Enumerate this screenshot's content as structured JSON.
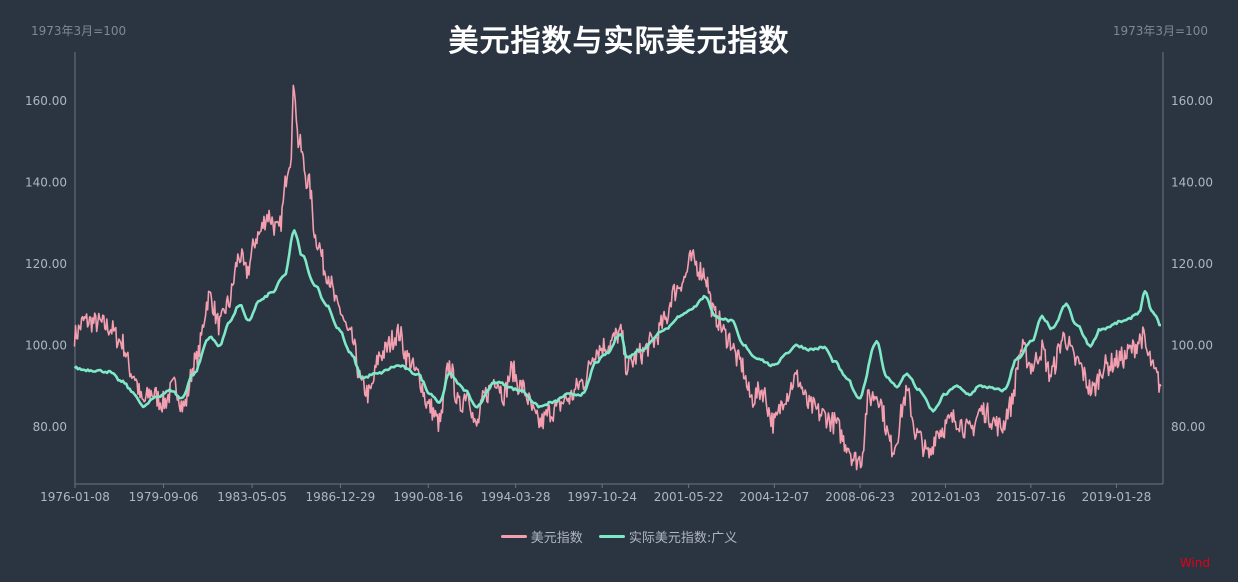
{
  "chart_data": {
    "type": "line",
    "title": "美元指数与实际美元指数",
    "y_unit_left": "1973年3月=100",
    "y_unit_right": "1973年3月=100",
    "x_tick_labels": [
      "1976-01-08",
      "1979-09-06",
      "1983-05-05",
      "1986-12-29",
      "1990-08-16",
      "1994-03-28",
      "1997-10-24",
      "2001-05-22",
      "2004-12-07",
      "2008-06-23",
      "2012-01-03",
      "2015-07-16",
      "2019-01-28"
    ],
    "x_range": [
      "1976-01-08",
      "2020-12-31"
    ],
    "y_tick_labels": [
      "80.00",
      "100.00",
      "120.00",
      "140.00",
      "160.00"
    ],
    "y_ticks": [
      80,
      100,
      120,
      140,
      160
    ],
    "ylim": [
      66,
      172
    ],
    "grid": false,
    "legend_position": "bottom",
    "source_label": "Wind",
    "series": [
      {
        "name": "美元指数",
        "color": "#f39fb0",
        "points": [
          [
            "1976-01",
            102.5
          ],
          [
            "1976-06",
            106.0
          ],
          [
            "1977-01",
            105.5
          ],
          [
            "1977-06",
            104.5
          ],
          [
            "1977-12",
            101.0
          ],
          [
            "1978-06",
            93.0
          ],
          [
            "1978-11",
            86.0
          ],
          [
            "1979-03",
            88.5
          ],
          [
            "1979-09",
            86.0
          ],
          [
            "1980-03",
            90.0
          ],
          [
            "1980-07",
            85.0
          ],
          [
            "1981-01",
            96.0
          ],
          [
            "1981-08",
            112.0
          ],
          [
            "1982-01",
            105.0
          ],
          [
            "1982-05",
            110.0
          ],
          [
            "1982-11",
            122.0
          ],
          [
            "1983-02",
            118.0
          ],
          [
            "1983-08",
            127.0
          ],
          [
            "1984-01",
            132.0
          ],
          [
            "1984-06",
            128.0
          ],
          [
            "1984-12",
            146.0
          ],
          [
            "1985-02",
            164.0
          ],
          [
            "1985-04",
            150.0
          ],
          [
            "1985-09",
            140.0
          ],
          [
            "1986-01",
            126.0
          ],
          [
            "1986-06",
            118.0
          ],
          [
            "1986-12",
            109.0
          ],
          [
            "1987-06",
            102.0
          ],
          [
            "1987-12",
            90.0
          ],
          [
            "1988-03",
            88.0
          ],
          [
            "1988-09",
            98.0
          ],
          [
            "1989-06",
            103.0
          ],
          [
            "1989-10",
            97.0
          ],
          [
            "1990-03",
            93.0
          ],
          [
            "1990-09",
            85.0
          ],
          [
            "1991-02",
            81.0
          ],
          [
            "1991-07",
            95.0
          ],
          [
            "1991-12",
            85.0
          ],
          [
            "1992-04",
            89.0
          ],
          [
            "1992-08",
            80.0
          ],
          [
            "1993-01",
            88.0
          ],
          [
            "1993-06",
            92.0
          ],
          [
            "1993-10",
            88.0
          ],
          [
            "1994-02",
            94.0
          ],
          [
            "1994-06",
            90.0
          ],
          [
            "1995-04",
            81.0
          ],
          [
            "1995-10",
            84.0
          ],
          [
            "1996-06",
            87.0
          ],
          [
            "1997-01",
            91.0
          ],
          [
            "1997-08",
            99.0
          ],
          [
            "1998-01",
            100.0
          ],
          [
            "1998-08",
            103.0
          ],
          [
            "1998-11",
            95.0
          ],
          [
            "1999-06",
            98.0
          ],
          [
            "1999-12",
            101.0
          ],
          [
            "2000-06",
            106.0
          ],
          [
            "2000-10",
            113.0
          ],
          [
            "2001-03",
            116.0
          ],
          [
            "2001-07",
            121.0
          ],
          [
            "2002-01",
            118.0
          ],
          [
            "2002-07",
            107.0
          ],
          [
            "2003-01",
            102.0
          ],
          [
            "2003-07",
            96.0
          ],
          [
            "2004-01",
            87.0
          ],
          [
            "2004-06",
            89.0
          ],
          [
            "2004-12",
            81.0
          ],
          [
            "2005-06",
            88.0
          ],
          [
            "2005-11",
            92.0
          ],
          [
            "2006-06",
            85.0
          ],
          [
            "2006-12",
            83.0
          ],
          [
            "2007-06",
            81.0
          ],
          [
            "2007-12",
            76.0
          ],
          [
            "2008-04",
            72.0
          ],
          [
            "2008-07",
            72.0
          ],
          [
            "2008-11",
            87.0
          ],
          [
            "2009-03",
            88.0
          ],
          [
            "2009-11",
            75.0
          ],
          [
            "2010-06",
            88.0
          ],
          [
            "2010-11",
            78.0
          ],
          [
            "2011-05",
            73.0
          ],
          [
            "2011-09",
            79.0
          ],
          [
            "2012-06",
            82.0
          ],
          [
            "2013-01",
            79.0
          ],
          [
            "2013-07",
            84.0
          ],
          [
            "2014-05",
            80.0
          ],
          [
            "2014-09",
            85.0
          ],
          [
            "2015-03",
            99.0
          ],
          [
            "2015-08",
            95.0
          ],
          [
            "2016-01",
            99.0
          ],
          [
            "2016-05",
            93.0
          ],
          [
            "2016-12",
            102.0
          ],
          [
            "2017-06",
            96.0
          ],
          [
            "2018-02",
            89.0
          ],
          [
            "2018-08",
            95.0
          ],
          [
            "2019-06",
            97.0
          ],
          [
            "2019-09",
            99.0
          ],
          [
            "2020-03",
            102.0
          ],
          [
            "2020-06",
            97.0
          ],
          [
            "2020-09",
            93.0
          ],
          [
            "2020-12",
            90.0
          ]
        ]
      },
      {
        "name": "实际美元指数:广义",
        "color": "#7ee8c8",
        "points": [
          [
            "1976-01",
            94.5
          ],
          [
            "1976-06",
            94.0
          ],
          [
            "1977-01",
            93.8
          ],
          [
            "1977-06",
            93.5
          ],
          [
            "1978-01",
            91.0
          ],
          [
            "1978-06",
            88.5
          ],
          [
            "1978-11",
            85.0
          ],
          [
            "1979-06",
            87.5
          ],
          [
            "1980-01",
            89.0
          ],
          [
            "1980-06",
            87.0
          ],
          [
            "1980-12",
            93.0
          ],
          [
            "1981-08",
            102.0
          ],
          [
            "1982-01",
            100.0
          ],
          [
            "1982-06",
            106.0
          ],
          [
            "1982-11",
            110.0
          ],
          [
            "1983-03",
            106.0
          ],
          [
            "1983-09",
            111.0
          ],
          [
            "1984-03",
            113.0
          ],
          [
            "1984-09",
            117.0
          ],
          [
            "1985-02",
            128.0
          ],
          [
            "1985-06",
            122.0
          ],
          [
            "1985-12",
            115.0
          ],
          [
            "1986-06",
            110.0
          ],
          [
            "1986-12",
            104.0
          ],
          [
            "1987-06",
            98.0
          ],
          [
            "1987-12",
            92.0
          ],
          [
            "1988-06",
            93.0
          ],
          [
            "1989-06",
            95.0
          ],
          [
            "1990-03",
            93.0
          ],
          [
            "1990-10",
            88.0
          ],
          [
            "1991-02",
            86.0
          ],
          [
            "1991-07",
            93.0
          ],
          [
            "1992-03",
            89.0
          ],
          [
            "1992-08",
            85.0
          ],
          [
            "1993-06",
            91.0
          ],
          [
            "1994-06",
            89.0
          ],
          [
            "1995-04",
            85.0
          ],
          [
            "1995-10",
            86.0
          ],
          [
            "1996-06",
            88.0
          ],
          [
            "1997-01",
            88.0
          ],
          [
            "1997-08",
            96.0
          ],
          [
            "1998-01",
            98.0
          ],
          [
            "1998-08",
            103.0
          ],
          [
            "1998-11",
            97.0
          ],
          [
            "1999-06",
            99.0
          ],
          [
            "2000-06",
            104.0
          ],
          [
            "2001-01",
            107.0
          ],
          [
            "2001-07",
            109.0
          ],
          [
            "2002-02",
            112.0
          ],
          [
            "2002-07",
            107.0
          ],
          [
            "2003-03",
            106.0
          ],
          [
            "2003-09",
            100.0
          ],
          [
            "2004-03",
            97.0
          ],
          [
            "2004-12",
            95.0
          ],
          [
            "2005-06",
            98.0
          ],
          [
            "2005-11",
            100.0
          ],
          [
            "2006-06",
            99.0
          ],
          [
            "2007-01",
            99.5
          ],
          [
            "2007-06",
            96.0
          ],
          [
            "2007-12",
            92.0
          ],
          [
            "2008-06",
            87.0
          ],
          [
            "2009-03",
            101.0
          ],
          [
            "2009-08",
            92.0
          ],
          [
            "2010-01",
            90.0
          ],
          [
            "2010-06",
            93.0
          ],
          [
            "2010-12",
            89.0
          ],
          [
            "2011-07",
            84.0
          ],
          [
            "2012-01",
            88.0
          ],
          [
            "2012-06",
            90.0
          ],
          [
            "2013-01",
            88.0
          ],
          [
            "2013-06",
            90.0
          ],
          [
            "2014-06",
            89.0
          ],
          [
            "2015-01",
            97.0
          ],
          [
            "2015-08",
            101.0
          ],
          [
            "2016-01",
            107.0
          ],
          [
            "2016-06",
            104.0
          ],
          [
            "2017-01",
            110.0
          ],
          [
            "2017-06",
            105.0
          ],
          [
            "2018-01",
            100.0
          ],
          [
            "2018-06",
            104.0
          ],
          [
            "2019-06",
            106.0
          ],
          [
            "2020-01",
            108.0
          ],
          [
            "2020-04",
            113.0
          ],
          [
            "2020-08",
            108.0
          ],
          [
            "2020-12",
            105.0
          ]
        ]
      }
    ]
  }
}
